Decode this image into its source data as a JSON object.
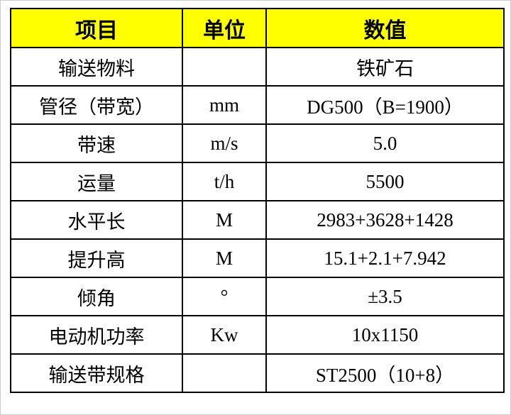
{
  "table": {
    "header": {
      "item": "项目",
      "unit": "单位",
      "value": "数值"
    },
    "rows": [
      {
        "item": "输送物料",
        "unit": "",
        "value": "铁矿石"
      },
      {
        "item": "管径（带宽）",
        "unit": "mm",
        "value": "DG500（B=1900）"
      },
      {
        "item": "带速",
        "unit": "m/s",
        "value": "5.0"
      },
      {
        "item": "运量",
        "unit": "t/h",
        "value": "5500"
      },
      {
        "item": "水平长",
        "unit": "M",
        "value": "2983+3628+1428"
      },
      {
        "item": "提升高",
        "unit": "M",
        "value": "15.1+2.1+7.942"
      },
      {
        "item": "倾角",
        "unit": "°",
        "value": "±3.5"
      },
      {
        "item": "电动机功率",
        "unit": "Kw",
        "value": "10x1150"
      },
      {
        "item": "输送带规格",
        "unit": "",
        "value": "ST2500（10+8）"
      }
    ],
    "colors": {
      "header_bg": "#ffff00",
      "border": "#000000",
      "text": "#000000",
      "page_frame": "#cccccc"
    }
  }
}
